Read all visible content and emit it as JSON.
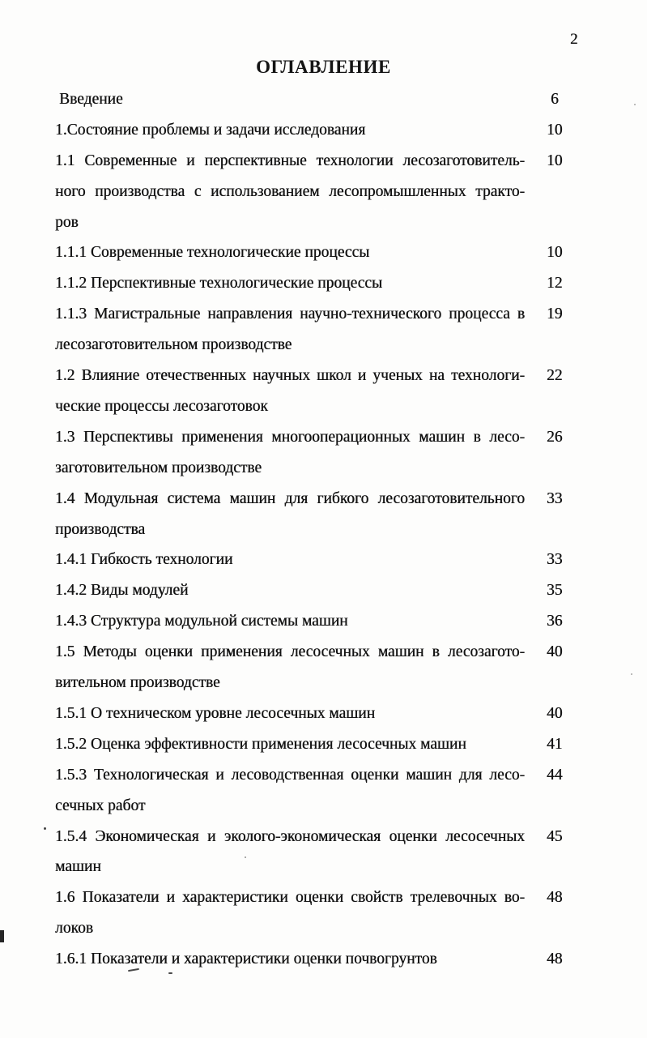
{
  "page_number": "2",
  "title": "ОГЛАВЛЕНИЕ",
  "entries": [
    {
      "lines": [
        "Введение"
      ],
      "page": "6"
    },
    {
      "lines": [
        "1.Состояние проблемы и задачи исследования"
      ],
      "page": "10"
    },
    {
      "lines": [
        "1.1 Современные и перспективные технологии лесозаготовитель-",
        "ного производства с использованием лесопромышленных тракто-",
        "ров"
      ],
      "page": "10"
    },
    {
      "lines": [
        "1.1.1 Современные технологические процессы"
      ],
      "page": "10"
    },
    {
      "lines": [
        "1.1.2 Перспективные технологические процессы"
      ],
      "page": "12"
    },
    {
      "lines": [
        "1.1.3 Магистральные направления научно-технического процесса в",
        "лесозаготовительном производстве"
      ],
      "page": "19"
    },
    {
      "lines": [
        "1.2 Влияние отечественных научных школ и ученых на технологи-",
        "ческие процессы лесозаготовок"
      ],
      "page": "22"
    },
    {
      "lines": [
        "1.3 Перспективы применения многооперационных машин в лесо-",
        "заготовительном производстве"
      ],
      "page": "26"
    },
    {
      "lines": [
        "1.4 Модульная система машин для гибкого лесозаготовительного",
        "производства"
      ],
      "page": "33"
    },
    {
      "lines": [
        "1.4.1 Гибкость технологии"
      ],
      "page": "33"
    },
    {
      "lines": [
        "1.4.2 Виды модулей"
      ],
      "page": "35"
    },
    {
      "lines": [
        "1.4.3 Структура модульной системы машин"
      ],
      "page": "36"
    },
    {
      "lines": [
        "1.5 Методы оценки применения лесосечных машин в лесозагото-",
        "вительном производстве"
      ],
      "page": "40"
    },
    {
      "lines": [
        "1.5.1 О техническом уровне лесосечных машин"
      ],
      "page": "40"
    },
    {
      "lines": [
        "1.5.2 Оценка эффективности применения лесосечных машин"
      ],
      "page": "41"
    },
    {
      "lines": [
        "1.5.3 Технологическая и лесоводственная оценки машин для лесо-",
        "сечных работ"
      ],
      "page": "44"
    },
    {
      "lines": [
        "1.5.4 Экономическая и эколого-экономическая оценки лесосечных",
        "машин"
      ],
      "page": "45"
    },
    {
      "lines": [
        "1.6 Показатели и характеристики оценки свойств трелевочных во-",
        "локов"
      ],
      "page": "48"
    },
    {
      "lines": [
        "1.6.1 Показатели и характеристики оценки почвогрунтов"
      ],
      "page": "48"
    }
  ]
}
